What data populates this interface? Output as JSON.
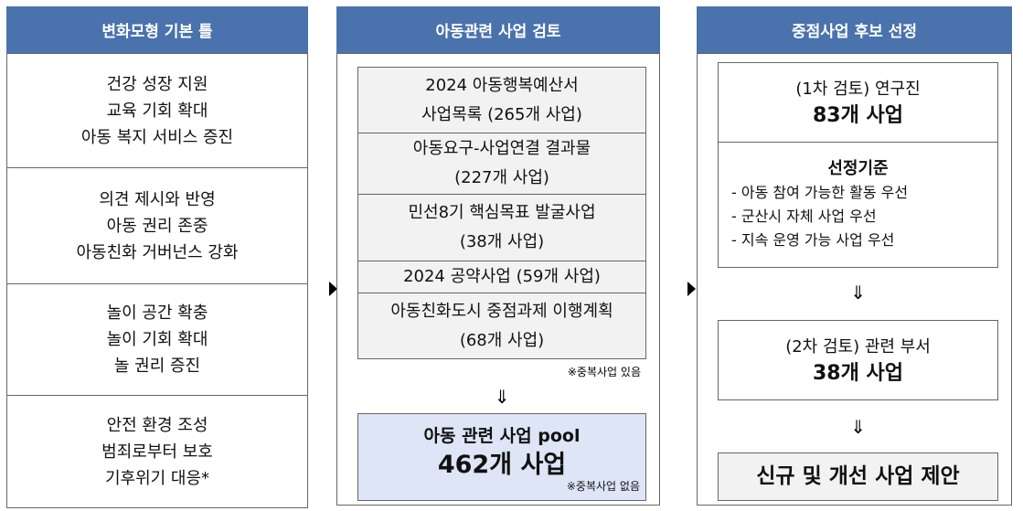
{
  "col1": {
    "header": "변화모형 기본 틀",
    "groups": [
      [
        "건강 성장 지원",
        "교육 기회 확대",
        "아동 복지 서비스 증진"
      ],
      [
        "의견 제시와 반영",
        "아동 권리 존중",
        "아동친화 거버넌스 강화"
      ],
      [
        "놀이 공간 확충",
        "놀이 기회 확대",
        "놀 권리 증진"
      ],
      [
        "안전 환경 조성",
        "범죄로부터 보호",
        "기후위기 대응*"
      ]
    ]
  },
  "col2": {
    "header": "아동관련 사업 검토",
    "sources": [
      [
        "2024 아동행복예산서",
        "사업목록 (265개 사업)"
      ],
      [
        "아동요구-사업연결 결과물",
        "(227개 사업)"
      ],
      [
        "민선8기 핵심목표 발굴사업",
        "(38개 사업)"
      ],
      [
        "2024 공약사업 (59개 사업)"
      ],
      [
        "아동친화도시 중점과제 이행계획",
        "(68개 사업)"
      ]
    ],
    "note": "※중복사업 있음",
    "arrow": "⇓",
    "pool": {
      "title": "아동 관련 사업 pool",
      "count": "462개 사업",
      "note": "※중복사업 없음"
    }
  },
  "col3": {
    "header": "중점사업 후보 선정",
    "first": {
      "label": "(1차 검토) 연구진",
      "count": "83개 사업"
    },
    "criteria": {
      "title": "선정기준",
      "items": [
        "- 아동 참여 가능한 활동 우선",
        "- 군산시 자체 사업 우선",
        "- 지속 운영 가능 사업 우선"
      ]
    },
    "arrows": [
      "⇓",
      "⇓"
    ],
    "second": {
      "label": "(2차 검토) 관련 부서",
      "count": "38개 사업"
    },
    "final": "신규 및 개선 사업 제안"
  }
}
